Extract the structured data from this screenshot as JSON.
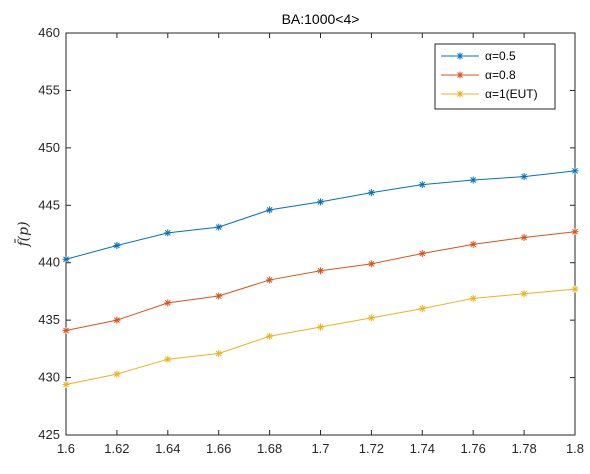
{
  "chart_data": {
    "type": "line",
    "title": "BA:1000<4>",
    "xlabel": "",
    "ylabel": "f̄(p)",
    "xlim": [
      1.6,
      1.8
    ],
    "ylim": [
      425,
      460
    ],
    "x": [
      1.6,
      1.62,
      1.64,
      1.66,
      1.68,
      1.7,
      1.72,
      1.74,
      1.76,
      1.78,
      1.8
    ],
    "x_tick_labels": [
      "1.6",
      "1.62",
      "1.64",
      "1.66",
      "1.68",
      "1.7",
      "1.72",
      "1.74",
      "1.76",
      "1.78",
      "1.8"
    ],
    "y_ticks": [
      425,
      430,
      435,
      440,
      445,
      450,
      455,
      460
    ],
    "y_tick_labels": [
      "425",
      "430",
      "435",
      "440",
      "445",
      "450",
      "455",
      "460"
    ],
    "grid": false,
    "legend_position": "top-right",
    "series": [
      {
        "name": "α=0.5",
        "color": "#0072BD",
        "marker": "*",
        "values": [
          440.3,
          441.5,
          442.6,
          443.1,
          444.6,
          445.3,
          446.1,
          446.8,
          447.2,
          447.5,
          448.0
        ]
      },
      {
        "name": "α=0.8",
        "color": "#D95319",
        "marker": "*",
        "values": [
          434.1,
          435.0,
          436.5,
          437.1,
          438.5,
          439.3,
          439.9,
          440.8,
          441.6,
          442.2,
          442.7
        ]
      },
      {
        "name": "α=1(EUT)",
        "color": "#EDB120",
        "marker": "*",
        "values": [
          429.4,
          430.3,
          431.6,
          432.1,
          433.6,
          434.4,
          435.2,
          436.0,
          436.9,
          437.3,
          437.7
        ]
      }
    ]
  }
}
